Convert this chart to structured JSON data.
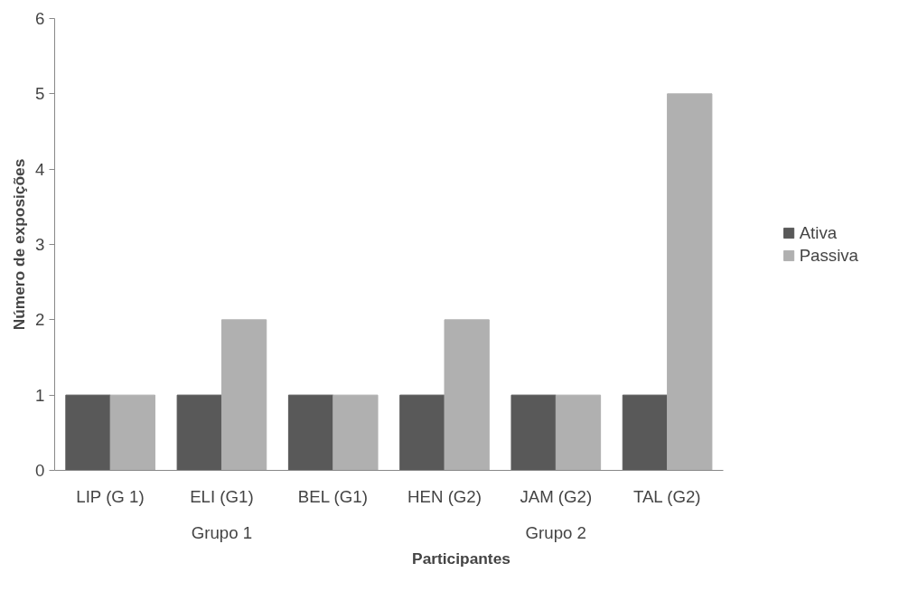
{
  "chart_data": {
    "type": "bar",
    "xlabel": "Participantes",
    "ylabel": "Número de exposições",
    "categories": [
      "LIP (G 1)",
      "ELI (G1)",
      "BEL (G1)",
      "HEN (G2)",
      "JAM (G2)",
      "TAL (G2)"
    ],
    "series": [
      {
        "name": "Ativa",
        "color": "#595959",
        "values": [
          1,
          1,
          1,
          1,
          1,
          1
        ]
      },
      {
        "name": "Passiva",
        "color": "#b0b0b0",
        "values": [
          1,
          2,
          1,
          2,
          1,
          5
        ]
      }
    ],
    "ylim": [
      0,
      6
    ],
    "yticks": [
      0,
      1,
      2,
      3,
      4,
      5,
      6
    ],
    "grid": false,
    "legend": "right",
    "annotations": [
      "Grupo 1",
      "Grupo 2"
    ]
  }
}
